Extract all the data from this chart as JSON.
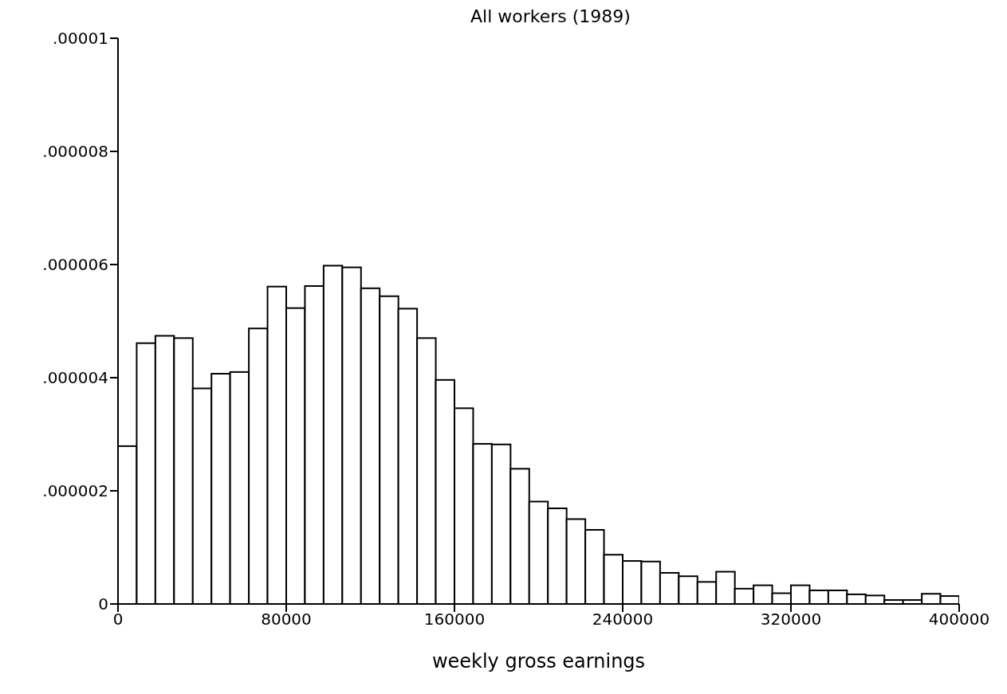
{
  "chart_data": {
    "type": "histogram",
    "title": "All workers (1989)",
    "xlabel": "weekly gross earnings",
    "bins": [
      0,
      8889,
      17778,
      26667,
      35556,
      44444,
      53333,
      62222,
      71111,
      80000,
      88889,
      97778,
      106667,
      115556,
      124444,
      133333,
      142222,
      151111,
      160000,
      168889,
      177778,
      186667,
      195556,
      204444,
      213333,
      222222,
      231111,
      240000,
      248889,
      257778,
      266667,
      275556,
      284444,
      293333,
      302222,
      311111,
      320000,
      328889,
      337778,
      346667,
      355556,
      364444,
      373333,
      382222,
      391111,
      400000
    ],
    "values": [
      2.79e-06,
      4.61e-06,
      4.74e-06,
      4.7e-06,
      3.81e-06,
      4.07e-06,
      4.1e-06,
      4.87e-06,
      5.61e-06,
      5.23e-06,
      5.62e-06,
      5.98e-06,
      5.95e-06,
      5.58e-06,
      5.44e-06,
      5.22e-06,
      4.7e-06,
      3.96e-06,
      3.46e-06,
      2.83e-06,
      2.82e-06,
      2.39e-06,
      1.81e-06,
      1.69e-06,
      1.5e-06,
      1.31e-06,
      8.7e-07,
      7.6e-07,
      7.5e-07,
      5.5e-07,
      4.9e-07,
      3.9e-07,
      5.7e-07,
      2.7e-07,
      3.3e-07,
      1.9e-07,
      3.3e-07,
      2.4e-07,
      2.4e-07,
      1.7e-07,
      1.5e-07,
      7e-08,
      7e-08,
      1.8e-07,
      1.4e-07
    ],
    "color": "#ffffff",
    "xlim": [
      0,
      400000
    ],
    "xticks": [
      0,
      80000,
      160000,
      240000,
      320000,
      400000
    ],
    "ylim": [
      0,
      1e-05
    ],
    "yticks": [
      0,
      {
        "value": 2e-06,
        "label": ".000002"
      },
      {
        "value": 4e-06,
        "label": ".000004"
      },
      {
        "value": 6e-06,
        "label": ".000006"
      },
      {
        "value": 8e-06,
        "label": ".000008"
      },
      {
        "value": 1e-05,
        "label": ".00001"
      }
    ],
    "grid": false
  }
}
